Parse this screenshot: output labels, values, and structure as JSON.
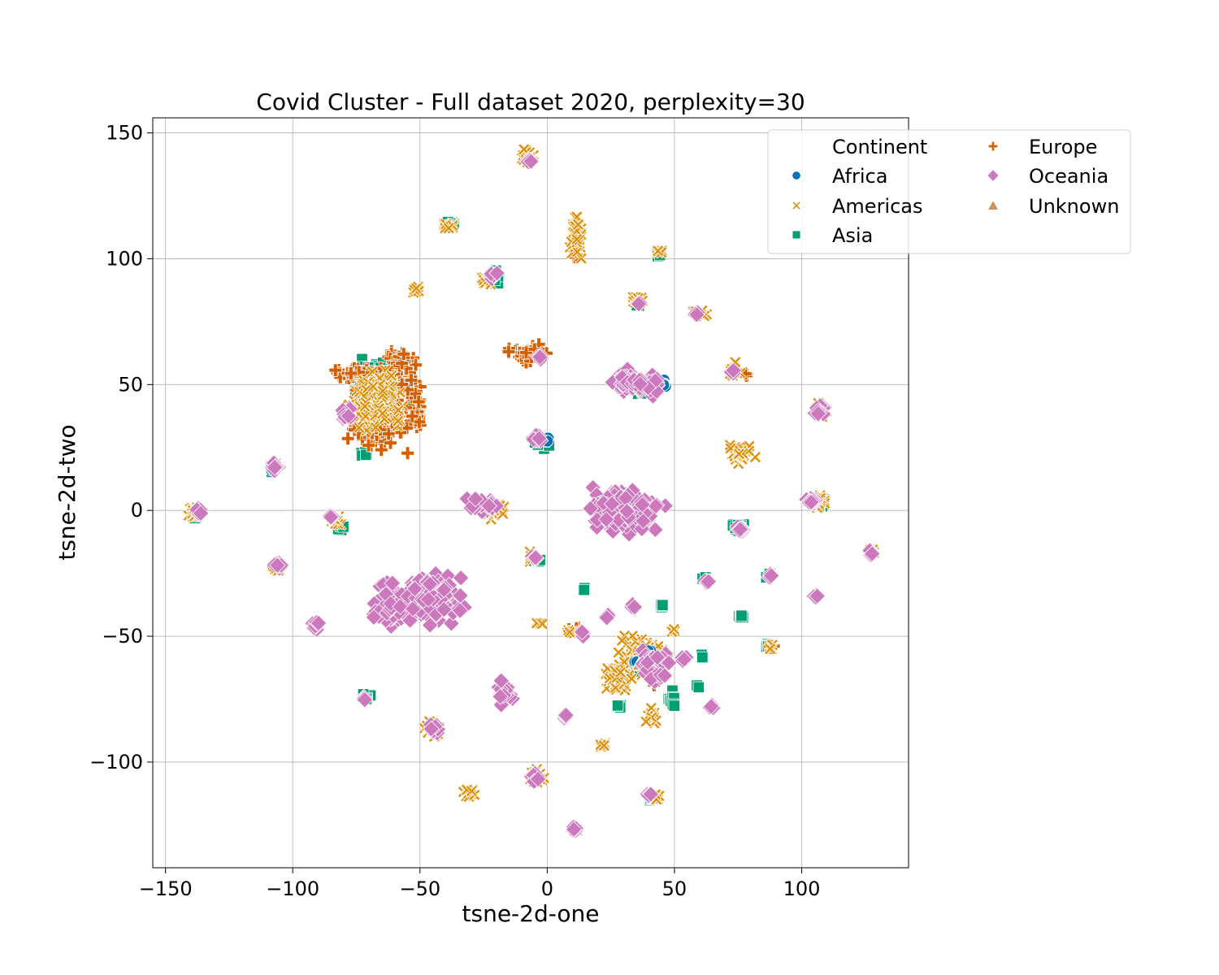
{
  "chart_data": {
    "type": "scatter",
    "title": "Covid Cluster - Full dataset 2020, perplexity=30",
    "xlabel": "tsne-2d-one",
    "ylabel": "tsne-2d-two",
    "xlim": [
      -155,
      142
    ],
    "ylim": [
      -142,
      156
    ],
    "xticks": [
      -150,
      -100,
      -50,
      0,
      50,
      100
    ],
    "yticks": [
      -100,
      -50,
      0,
      50,
      100,
      150
    ],
    "xtick_labels": [
      "−150",
      "−100",
      "−50",
      "0",
      "50",
      "100"
    ],
    "ytick_labels": [
      "−100",
      "−50",
      "0",
      "50",
      "100",
      "150"
    ],
    "grid": true,
    "legend": {
      "title": "Continent",
      "placement": "top-right, outside axes",
      "columns": 2,
      "entries": [
        "Africa",
        "Americas",
        "Asia",
        "Europe",
        "Oceania",
        "Unknown"
      ]
    },
    "series": [
      {
        "name": "Africa",
        "marker": "circle",
        "color": "#0173b2",
        "clusters": [
          [
            -108,
            17,
            1,
            2
          ],
          [
            -137,
            -1,
            1,
            2
          ],
          [
            0,
            28,
            1,
            2
          ],
          [
            35,
            -60,
            1,
            2
          ],
          [
            40,
            -57,
            1,
            2
          ],
          [
            46,
            50,
            1,
            2
          ],
          [
            11,
            -127,
            1,
            1
          ],
          [
            106,
            -34,
            1,
            1
          ]
        ]
      },
      {
        "name": "Americas",
        "marker": "x",
        "color": "#de8f05",
        "clusters": [
          [
            -8,
            140,
            3,
            3
          ],
          [
            11,
            110,
            3,
            9
          ],
          [
            -38,
            113,
            3,
            2
          ],
          [
            -51,
            88,
            2,
            2
          ],
          [
            -24,
            91,
            3,
            2
          ],
          [
            35,
            84,
            3,
            2
          ],
          [
            44,
            103,
            2,
            1
          ],
          [
            60,
            78,
            3,
            2
          ],
          [
            73,
            55,
            3,
            3
          ],
          [
            76,
            23,
            5,
            4
          ],
          [
            107,
            40,
            3,
            3
          ],
          [
            107,
            4,
            3,
            3
          ],
          [
            38,
            -57,
            9,
            8
          ],
          [
            28,
            -67,
            6,
            6
          ],
          [
            41,
            -82,
            2,
            3
          ],
          [
            22,
            -93,
            2,
            1
          ],
          [
            -31,
            -112,
            3,
            2
          ],
          [
            43,
            -114,
            3,
            2
          ],
          [
            -45,
            -87,
            3,
            3
          ],
          [
            -106,
            -23,
            2,
            2
          ],
          [
            -83,
            -4,
            3,
            2
          ],
          [
            -139,
            -1,
            3,
            2
          ],
          [
            -67,
            44,
            10,
            12
          ],
          [
            -22,
            0,
            5,
            3
          ],
          [
            9,
            -48,
            2,
            1
          ],
          [
            -3,
            -45,
            2,
            1
          ],
          [
            88,
            -54,
            1,
            1
          ],
          [
            127,
            -16,
            2,
            1
          ],
          [
            -6,
            -18,
            2,
            2
          ],
          [
            -4,
            -106,
            3,
            3
          ],
          [
            50,
            -48,
            2,
            1
          ]
        ]
      },
      {
        "name": "Asia",
        "marker": "square",
        "color": "#029e73",
        "clusters": [
          [
            -38,
            114,
            2,
            1
          ],
          [
            -20,
            92,
            2,
            3
          ],
          [
            44,
            102,
            1,
            1
          ],
          [
            36,
            82,
            1,
            1
          ],
          [
            -1,
            27,
            4,
            3
          ],
          [
            -72,
            22,
            2,
            2
          ],
          [
            -68,
            48,
            8,
            10
          ],
          [
            -108,
            17,
            2,
            2
          ],
          [
            -138,
            -1,
            2,
            2
          ],
          [
            -81,
            -6,
            2,
            2
          ],
          [
            -71,
            -74,
            2,
            2
          ],
          [
            37,
            48,
            4,
            3
          ],
          [
            75,
            -7,
            3,
            2
          ],
          [
            108,
            3,
            2,
            2
          ],
          [
            -4,
            -20,
            2,
            1
          ],
          [
            15,
            -31,
            1,
            1
          ],
          [
            39,
            -60,
            4,
            6
          ],
          [
            28,
            -78,
            1,
            1
          ],
          [
            61,
            -58,
            1,
            1
          ],
          [
            62,
            -27,
            1,
            1
          ],
          [
            76,
            -42,
            1,
            1
          ],
          [
            87,
            -26,
            1,
            1
          ],
          [
            87,
            -54,
            1,
            1
          ],
          [
            41,
            -114,
            2,
            1
          ],
          [
            11,
            -127,
            1,
            1
          ],
          [
            45,
            -38,
            1,
            1
          ],
          [
            49,
            -75,
            2,
            3
          ],
          [
            59,
            -70,
            1,
            1
          ]
        ]
      },
      {
        "name": "Europe",
        "marker": "plus",
        "color": "#d55e00",
        "clusters": [
          [
            -8,
            62,
            8,
            4
          ],
          [
            -65,
            40,
            12,
            14
          ],
          [
            -76,
            55,
            8,
            3
          ],
          [
            -57,
            58,
            6,
            5
          ],
          [
            -52,
            40,
            3,
            10
          ],
          [
            11,
            101,
            2,
            1
          ],
          [
            9,
            -48,
            1,
            1
          ],
          [
            37,
            -55,
            4,
            3
          ],
          [
            42,
            -69,
            1,
            1
          ],
          [
            88,
            -54,
            1,
            1
          ],
          [
            -84,
            -4,
            1,
            1
          ],
          [
            -107,
            -23,
            1,
            1
          ],
          [
            12,
            -47,
            1,
            1
          ],
          [
            78,
            54,
            1,
            1
          ]
        ]
      },
      {
        "name": "Oceania",
        "marker": "diamond",
        "color": "#cc78bc",
        "clusters": [
          [
            -7,
            139,
            1,
            1
          ],
          [
            -21,
            94,
            2,
            2
          ],
          [
            35,
            51,
            11,
            5
          ],
          [
            30,
            0,
            14,
            9
          ],
          [
            -26,
            2,
            7,
            3
          ],
          [
            -45,
            -35,
            13,
            9
          ],
          [
            -61,
            -38,
            7,
            8
          ],
          [
            -107,
            17,
            2,
            2
          ],
          [
            -106,
            -22,
            2,
            2
          ],
          [
            -91,
            -46,
            2,
            2
          ],
          [
            -17,
            -73,
            3,
            5
          ],
          [
            -44,
            -87,
            2,
            2
          ],
          [
            -5,
            -106,
            2,
            2
          ],
          [
            40,
            -113,
            1,
            1
          ],
          [
            11,
            -127,
            1,
            1
          ],
          [
            107,
            40,
            3,
            2
          ],
          [
            104,
            4,
            3,
            2
          ],
          [
            76,
            -7,
            2,
            2
          ],
          [
            127,
            -17,
            1,
            1
          ],
          [
            -79,
            38,
            2,
            3
          ],
          [
            -137,
            0,
            2,
            2
          ],
          [
            -4,
            29,
            2,
            2
          ],
          [
            -3,
            61,
            1,
            1
          ],
          [
            -72,
            -75,
            1,
            1
          ],
          [
            106,
            -34,
            1,
            1
          ],
          [
            42,
            -62,
            6,
            6
          ],
          [
            34,
            -38,
            1,
            1
          ],
          [
            24,
            -42,
            1,
            1
          ],
          [
            7,
            -82,
            1,
            1
          ],
          [
            14,
            -49,
            1,
            1
          ],
          [
            59,
            78,
            1,
            1
          ],
          [
            73,
            55,
            1,
            1
          ],
          [
            36,
            82,
            1,
            1
          ],
          [
            -5,
            -19,
            1,
            1
          ],
          [
            88,
            -26,
            1,
            1
          ],
          [
            65,
            -78,
            1,
            1
          ],
          [
            54,
            -59,
            1,
            1
          ],
          [
            63,
            -28,
            1,
            1
          ],
          [
            -85,
            -3,
            1,
            1
          ]
        ]
      },
      {
        "name": "Unknown",
        "marker": "triangle",
        "color": "#ca9161",
        "clusters": [
          [
            37,
            -61,
            1,
            1
          ]
        ]
      }
    ]
  }
}
